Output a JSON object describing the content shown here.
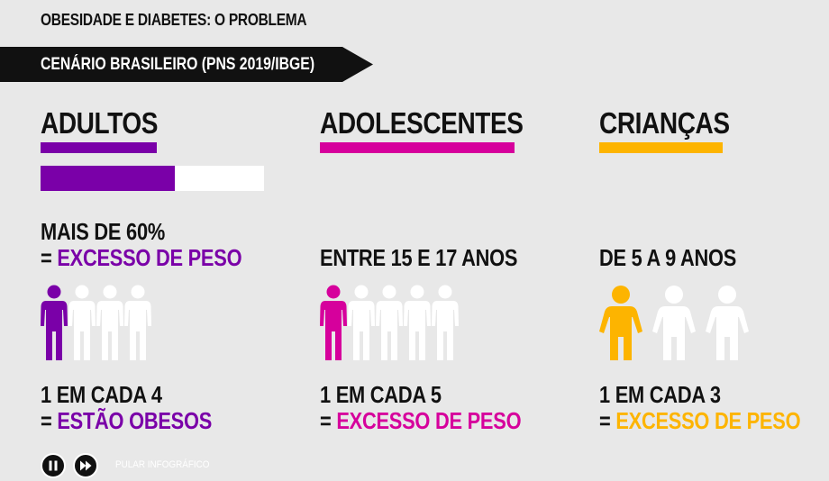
{
  "header": {
    "topline": "OBESIDADE E DIABETES: O PROBLEMA",
    "banner": "CENÁRIO BRASILEIRO (PNS 2019/IBGE)"
  },
  "colors": {
    "adultos": "#7a00a8",
    "adolescentes": "#d6009c",
    "criancas": "#fdb400",
    "inactive_figure": "#ffffff",
    "background": "#e8e8e8"
  },
  "columns": [
    {
      "title": "ADULTOS",
      "progress_fraction": 0.6,
      "stat1": "MAIS DE 60%",
      "stat1_highlight_prefix": "= ",
      "stat1_highlight": "EXCESSO DE PESO",
      "stat2": "1 EM CADA 4",
      "stat2_prefix": "= ",
      "stat2_highlight": "ESTÃO OBESOS",
      "figures_total": 4,
      "figures_highlighted": 1
    },
    {
      "title": "ADOLESCENTES",
      "stat1": "ENTRE 15 E 17 ANOS",
      "stat2": "1 EM CADA 5",
      "stat2_prefix": "= ",
      "stat2_highlight": "EXCESSO DE PESO",
      "figures_total": 5,
      "figures_highlighted": 1
    },
    {
      "title": "CRIANÇAS",
      "stat1": "DE 5 A 9 ANOS",
      "stat2": "1 EM CADA 3",
      "stat2_prefix": "= ",
      "stat2_highlight": "EXCESSO DE PESO",
      "figures_total": 3,
      "figures_highlighted": 1
    }
  ],
  "controls": {
    "pause_icon": "pause-icon",
    "next_icon": "next-icon",
    "skip_label": "PULAR INFOGRÁFICO"
  }
}
